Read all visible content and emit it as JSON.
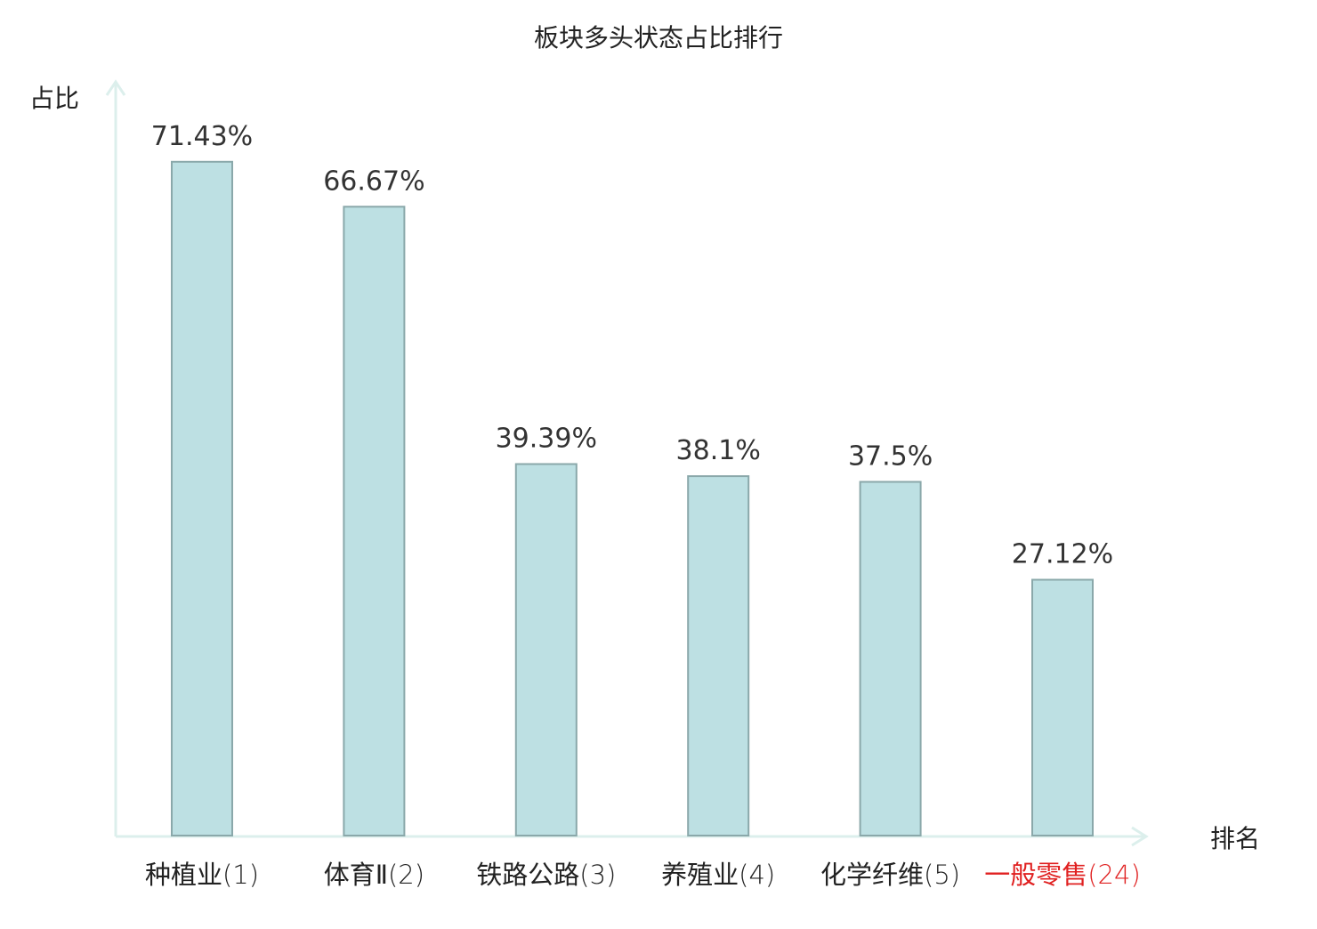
{
  "chart_data": {
    "type": "bar",
    "title": "板块多头状态占比排行",
    "xlabel": "排名",
    "ylabel": "占比",
    "categories": [
      {
        "name": "种植业",
        "rank": "(1)",
        "highlight": false
      },
      {
        "name": "体育Ⅱ",
        "rank": "(2)",
        "highlight": false
      },
      {
        "name": "铁路公路",
        "rank": "(3)",
        "highlight": false
      },
      {
        "name": "养殖业",
        "rank": "(4)",
        "highlight": false
      },
      {
        "name": "化学纤维",
        "rank": "(5)",
        "highlight": false
      },
      {
        "name": "一般零售",
        "rank": "(24)",
        "highlight": true
      }
    ],
    "values": [
      71.43,
      66.67,
      39.39,
      38.1,
      37.5,
      27.12
    ],
    "value_labels": [
      "71.43%",
      "66.67%",
      "39.39%",
      "38.1%",
      "37.5%",
      "27.12%"
    ],
    "ylim": [
      0,
      80
    ],
    "grid": false,
    "legend": "none"
  },
  "colors": {
    "bar_fill": "#bde0e3",
    "bar_stroke": "#8aa8aa",
    "axis": "#dcefec",
    "text": "#222222",
    "value_label": "#333333",
    "highlight": "#e02020"
  }
}
